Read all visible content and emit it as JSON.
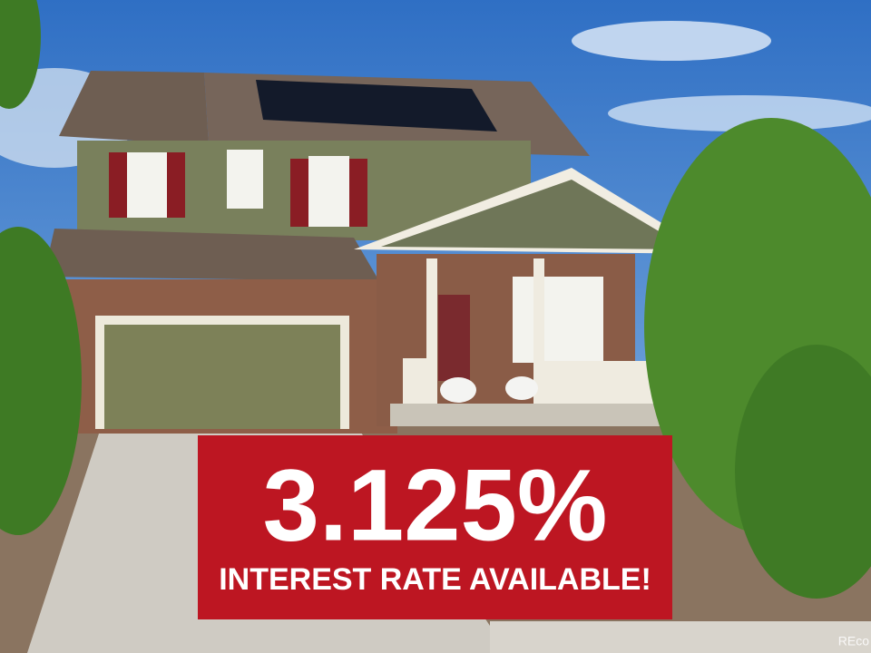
{
  "banner": {
    "headline": "3.125%",
    "subtext": "INTEREST RATE AVAILABLE!"
  },
  "watermark": "REco"
}
